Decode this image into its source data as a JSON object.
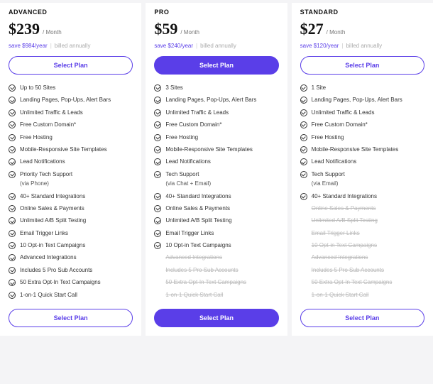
{
  "common": {
    "select_label": "Select Plan",
    "per_label": "/ Month",
    "billed_label": "billed annually"
  },
  "plans": [
    {
      "id": "advanced",
      "name": "ADVANCED",
      "price": "$239",
      "save": "save $984/year",
      "primary": false,
      "features": [
        {
          "label": "Up to 50 Sites",
          "state": "on"
        },
        {
          "label": "Landing Pages, Pop-Ups, Alert Bars",
          "state": "on"
        },
        {
          "label": "Unlimited Traffic & Leads",
          "state": "on"
        },
        {
          "label": "Free Custom Domain*",
          "state": "on"
        },
        {
          "label": "Free Hosting",
          "state": "on"
        },
        {
          "label": "Mobile-Responsive Site Templates",
          "state": "on"
        },
        {
          "label": "Lead Notifications",
          "state": "on"
        },
        {
          "label": "Priority Tech Support",
          "state": "on"
        },
        {
          "label": "(via Phone)",
          "state": "sub"
        },
        {
          "label": "40+ Standard Integrations",
          "state": "on"
        },
        {
          "label": "Online Sales & Payments",
          "state": "on"
        },
        {
          "label": "Unlimited A/B Split Testing",
          "state": "on"
        },
        {
          "label": "Email Trigger Links",
          "state": "on"
        },
        {
          "label": "10 Opt-in Text Campaigns",
          "state": "on"
        },
        {
          "label": "Advanced Integrations",
          "state": "on"
        },
        {
          "label": "Includes 5 Pro Sub Accounts",
          "state": "on"
        },
        {
          "label": "50 Extra Opt-In Text Campaigns",
          "state": "on"
        },
        {
          "label": "1-on-1 Quick Start Call",
          "state": "on"
        }
      ]
    },
    {
      "id": "pro",
      "name": "PRO",
      "price": "$59",
      "save": "save $240/year",
      "primary": true,
      "features": [
        {
          "label": "3 Sites",
          "state": "on"
        },
        {
          "label": "Landing Pages, Pop-Ups, Alert Bars",
          "state": "on"
        },
        {
          "label": "Unlimited Traffic & Leads",
          "state": "on"
        },
        {
          "label": "Free Custom Domain*",
          "state": "on"
        },
        {
          "label": "Free Hosting",
          "state": "on"
        },
        {
          "label": "Mobile-Responsive Site Templates",
          "state": "on"
        },
        {
          "label": "Lead Notifications",
          "state": "on"
        },
        {
          "label": "Tech Support",
          "state": "on"
        },
        {
          "label": "(via Chat + Email)",
          "state": "sub"
        },
        {
          "label": "40+ Standard Integrations",
          "state": "on"
        },
        {
          "label": "Online Sales & Payments",
          "state": "on"
        },
        {
          "label": "Unlimited A/B Split Testing",
          "state": "on"
        },
        {
          "label": "Email Trigger Links",
          "state": "on"
        },
        {
          "label": "10 Opt-in Text Campaigns",
          "state": "on"
        },
        {
          "label": "Advanced Integrations",
          "state": "off"
        },
        {
          "label": "Includes 5 Pro Sub Accounts",
          "state": "off"
        },
        {
          "label": "50 Extra Opt-In Text Campaigns",
          "state": "off"
        },
        {
          "label": "1-on-1 Quick Start Call",
          "state": "off"
        }
      ]
    },
    {
      "id": "standard",
      "name": "STANDARD",
      "price": "$27",
      "save": "save $120/year",
      "primary": false,
      "features": [
        {
          "label": "1 Site",
          "state": "on"
        },
        {
          "label": "Landing Pages, Pop-Ups, Alert Bars",
          "state": "on"
        },
        {
          "label": "Unlimited Traffic & Leads",
          "state": "on"
        },
        {
          "label": "Free Custom Domain*",
          "state": "on"
        },
        {
          "label": "Free Hosting",
          "state": "on"
        },
        {
          "label": "Mobile-Responsive Site Templates",
          "state": "on"
        },
        {
          "label": "Lead Notifications",
          "state": "on"
        },
        {
          "label": "Tech Support",
          "state": "on"
        },
        {
          "label": "(via Email)",
          "state": "sub"
        },
        {
          "label": "40+ Standard Integrations",
          "state": "on"
        },
        {
          "label": "Online Sales & Payments",
          "state": "off"
        },
        {
          "label": "Unlimited A/B Split Testing",
          "state": "off"
        },
        {
          "label": "Email Trigger Links",
          "state": "off"
        },
        {
          "label": "10 Opt-in Text Campaigns",
          "state": "off"
        },
        {
          "label": "Advanced Integrations",
          "state": "off"
        },
        {
          "label": "Includes 5 Pro Sub Accounts",
          "state": "off"
        },
        {
          "label": "50 Extra Opt-In Text Campaigns",
          "state": "off"
        },
        {
          "label": "1-on-1 Quick Start Call",
          "state": "off"
        }
      ]
    }
  ]
}
